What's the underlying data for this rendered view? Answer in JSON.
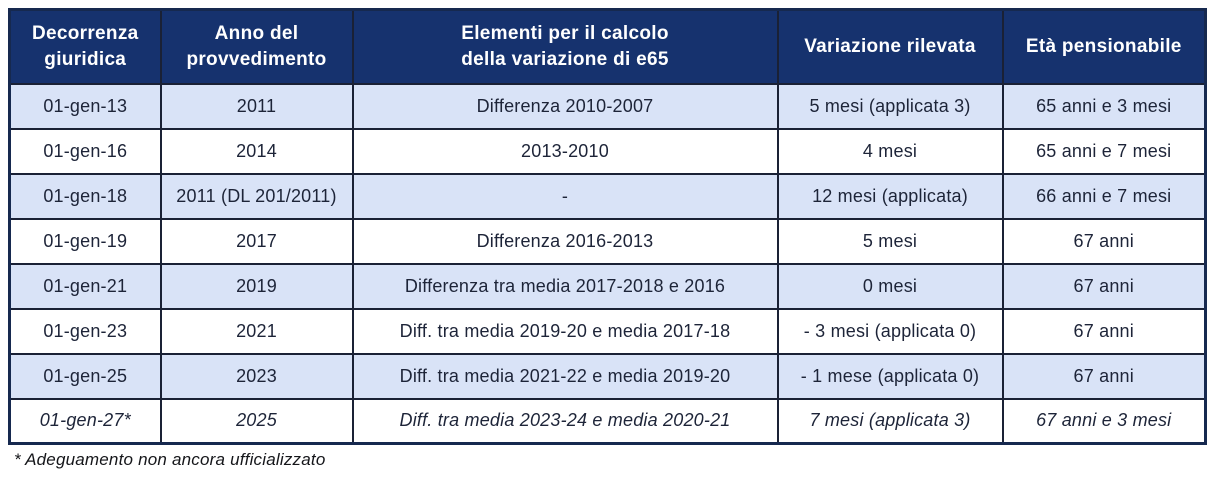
{
  "colors": {
    "header_bg": "#16326e",
    "header_text": "#ffffff",
    "row_alt_bg": "#d9e3f7",
    "row_bg": "#ffffff",
    "inner_border": "#1a2135",
    "outer_border": "#16294f",
    "body_text": "#1d2438"
  },
  "table": {
    "columns": [
      {
        "label": "Decorrenza\ngiuridica"
      },
      {
        "label": "Anno del\nprovvedimento"
      },
      {
        "label": "Elementi per il calcolo\ndella variazione di e65"
      },
      {
        "label": "Variazione rilevata"
      },
      {
        "label": "Età pensionabile"
      }
    ],
    "rows": [
      {
        "italic": false,
        "cells": [
          "01-gen-13",
          "2011",
          "Differenza 2010-2007",
          "5 mesi (applicata 3)",
          "65 anni e 3 mesi"
        ]
      },
      {
        "italic": false,
        "cells": [
          "01-gen-16",
          "2014",
          "2013-2010",
          "4 mesi",
          "65 anni e 7 mesi"
        ]
      },
      {
        "italic": false,
        "cells": [
          "01-gen-18",
          "2011 (DL 201/2011)",
          "-",
          "12 mesi (applicata)",
          "66 anni e 7 mesi"
        ]
      },
      {
        "italic": false,
        "cells": [
          "01-gen-19",
          "2017",
          "Differenza 2016-2013",
          "5 mesi",
          "67 anni"
        ]
      },
      {
        "italic": false,
        "cells": [
          "01-gen-21",
          "2019",
          "Differenza tra media 2017-2018 e 2016",
          "0 mesi",
          "67 anni"
        ]
      },
      {
        "italic": false,
        "cells": [
          "01-gen-23",
          "2021",
          "Diff. tra media 2019-20 e media 2017-18",
          "- 3 mesi (applicata 0)",
          "67 anni"
        ]
      },
      {
        "italic": false,
        "cells": [
          "01-gen-25",
          "2023",
          "Diff. tra media 2021-22 e media 2019-20",
          "- 1 mese (applicata 0)",
          "67 anni"
        ]
      },
      {
        "italic": true,
        "cells": [
          "01-gen-27*",
          "2025",
          "Diff. tra media 2023-24 e media 2020-21",
          "7 mesi (applicata 3)",
          "67 anni e 3 mesi"
        ]
      }
    ]
  },
  "footnote": "* Adeguamento non ancora ufficializzato",
  "chart_data": {
    "type": "table",
    "title": "",
    "columns": [
      "Decorrenza giuridica",
      "Anno del provvedimento",
      "Elementi per il calcolo della variazione di e65",
      "Variazione rilevata",
      "Età pensionabile"
    ],
    "rows": [
      [
        "01-gen-13",
        "2011",
        "Differenza 2010-2007",
        "5 mesi (applicata 3)",
        "65 anni e 3 mesi"
      ],
      [
        "01-gen-16",
        "2014",
        "2013-2010",
        "4 mesi",
        "65 anni e 7 mesi"
      ],
      [
        "01-gen-18",
        "2011 (DL 201/2011)",
        "-",
        "12 mesi (applicata)",
        "66 anni e 7 mesi"
      ],
      [
        "01-gen-19",
        "2017",
        "Differenza 2016-2013",
        "5 mesi",
        "67 anni"
      ],
      [
        "01-gen-21",
        "2019",
        "Differenza tra media 2017-2018 e 2016",
        "0 mesi",
        "67 anni"
      ],
      [
        "01-gen-23",
        "2021",
        "Diff. tra media 2019-20 e media 2017-18",
        "- 3 mesi (applicata 0)",
        "67 anni"
      ],
      [
        "01-gen-25",
        "2023",
        "Diff. tra media 2021-22 e media 2019-20",
        "- 1 mese (applicata 0)",
        "67 anni"
      ],
      [
        "01-gen-27*",
        "2025",
        "Diff. tra media 2023-24 e media 2020-21",
        "7 mesi (applicata 3)",
        "67 anni e 3 mesi"
      ]
    ]
  }
}
